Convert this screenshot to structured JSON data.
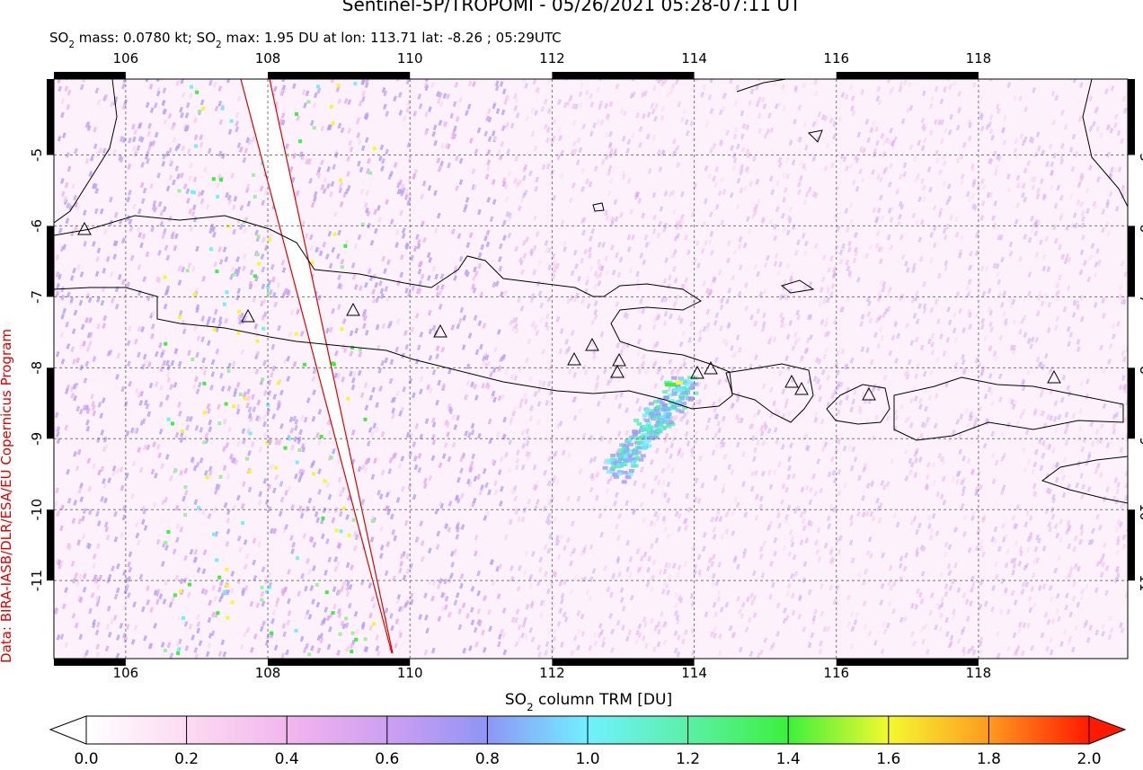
{
  "header": {
    "title": "Sentinel-5P/TROPOMI - 05/26/2021 05:28-07:11 UT",
    "subtitle": [
      {
        "text": "SO"
      },
      {
        "text": "2",
        "sub": true
      },
      {
        "text": " mass: 0.0780 kt; SO"
      },
      {
        "text": "2",
        "sub": true
      },
      {
        "text": " max: 1.95 DU at lon: 113.71 lat: -8.26 ; 05:29UTC"
      }
    ]
  },
  "map": {
    "lon_range": [
      104.99,
      120.1
    ],
    "lat_range": [
      -3.93,
      -12.1
    ],
    "lon_ticks": [
      106,
      108,
      110,
      112,
      114,
      116,
      118
    ],
    "lat_ticks": [
      -5,
      -6,
      -7,
      -8,
      -9,
      -10,
      -11
    ]
  },
  "credit": "Data: BIRA-IASB/DLR/ESA/EU Copernicus Program",
  "colorbar": {
    "label": [
      {
        "text": "SO"
      },
      {
        "text": "2",
        "sub": true
      },
      {
        "text": " column TRM [DU]"
      }
    ],
    "range": [
      0,
      2
    ],
    "ticks": [
      {
        "value": 0,
        "label": "0.0"
      },
      {
        "value": 0.2,
        "label": "0.2"
      },
      {
        "value": 0.4,
        "label": "0.4"
      },
      {
        "value": 0.6,
        "label": "0.6"
      },
      {
        "value": 0.8,
        "label": "0.8"
      },
      {
        "value": 1,
        "label": "1.0"
      },
      {
        "value": 1.2,
        "label": "1.2"
      },
      {
        "value": 1.4,
        "label": "1.4"
      },
      {
        "value": 1.6,
        "label": "1.6"
      },
      {
        "value": 1.8,
        "label": "1.8"
      },
      {
        "value": 2,
        "label": "2.0"
      }
    ]
  }
}
